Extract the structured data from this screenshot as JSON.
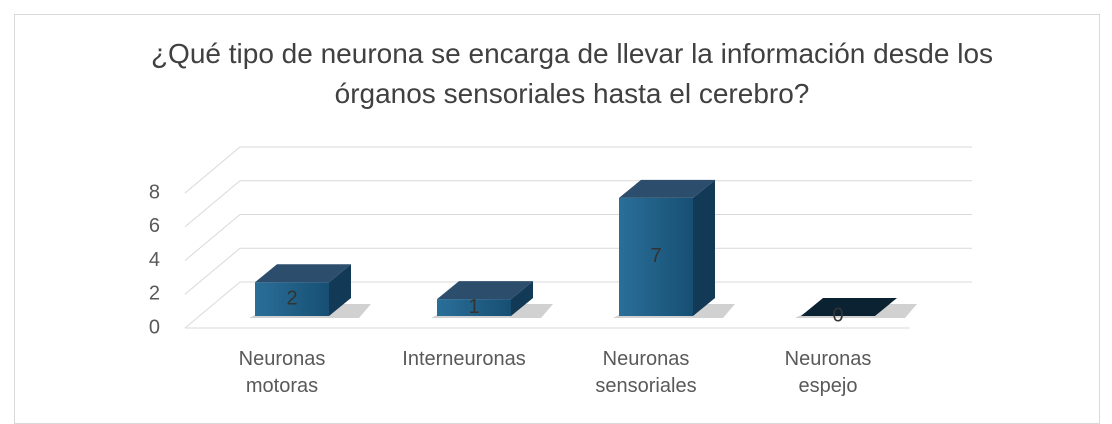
{
  "chart_data": {
    "type": "bar3d",
    "title": "¿Qué tipo de neurona se encarga de llevar la información desde los órganos sensoriales hasta el cerebro?",
    "categories": [
      "Neuronas motoras",
      "Interneuronas",
      "Neuronas sensoriales",
      "Neuronas espejo"
    ],
    "values": [
      2,
      1,
      7,
      0
    ],
    "color": "#1f5f86",
    "ylim": [
      0,
      8
    ],
    "yticks": [
      0,
      2,
      4,
      6,
      8
    ],
    "grid": true
  }
}
